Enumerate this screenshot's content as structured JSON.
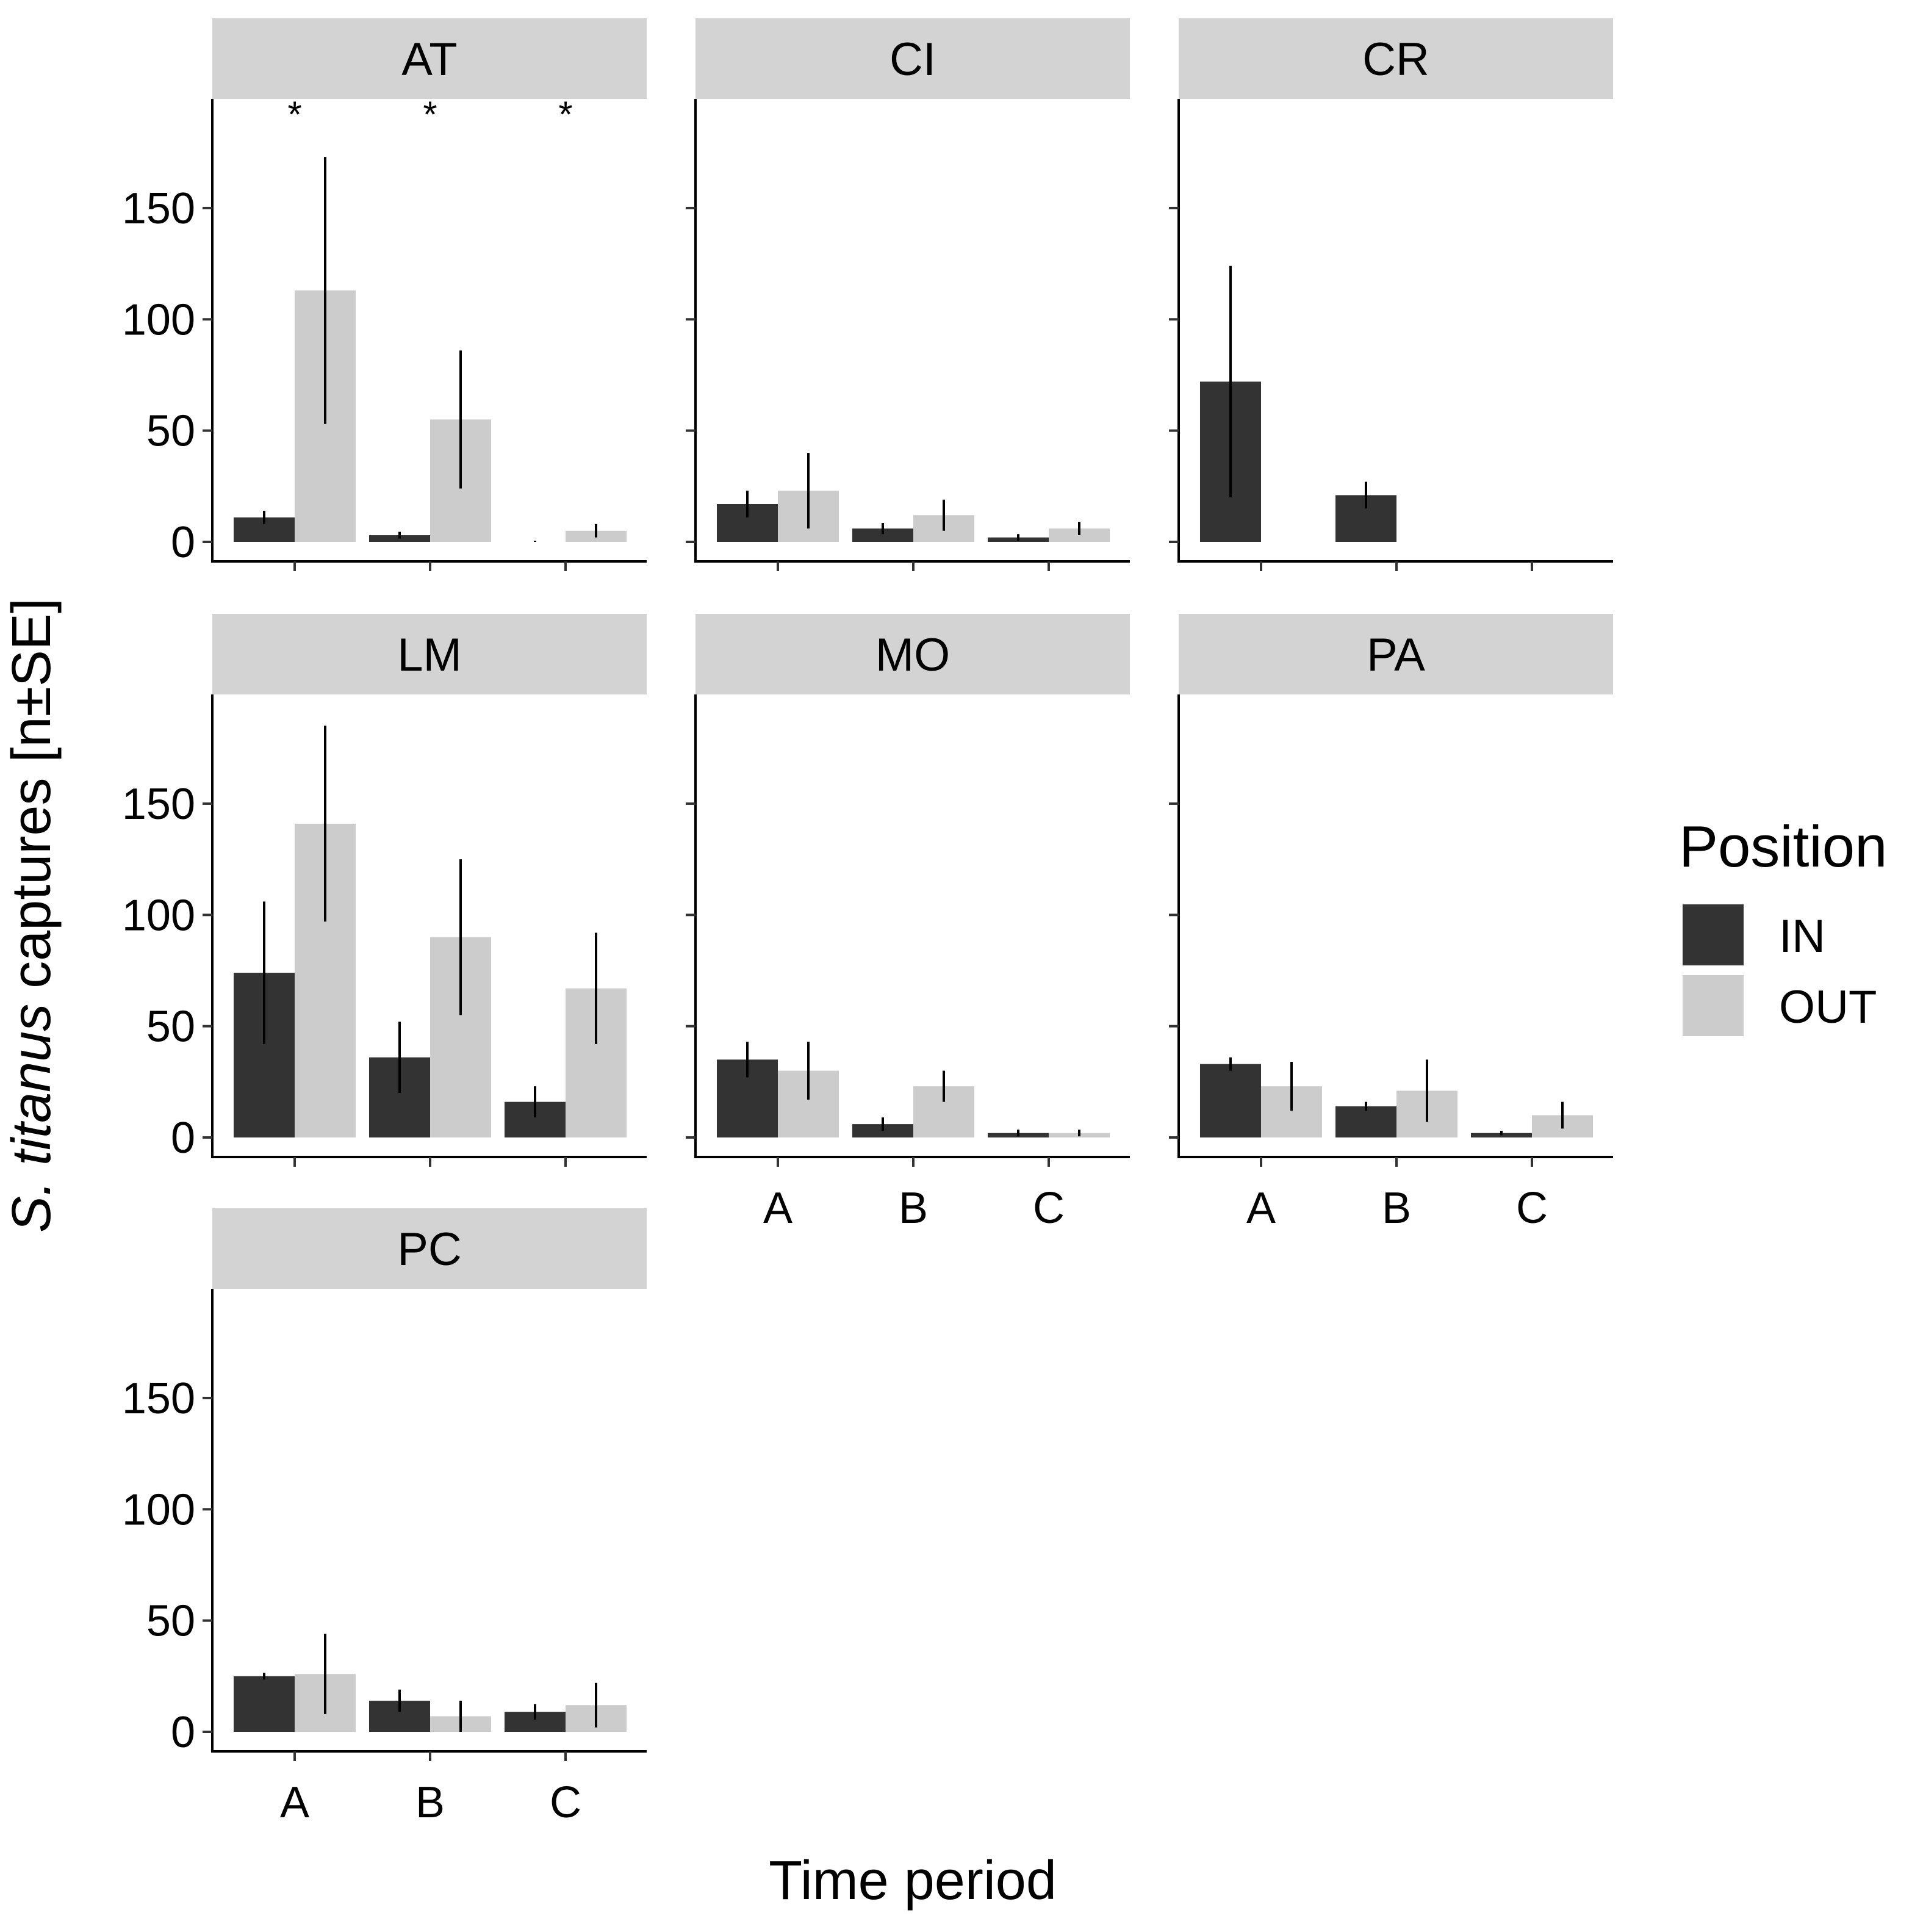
{
  "chart_data": {
    "type": "bar",
    "xlabel": "Time period",
    "ylabel": {
      "species": "S. titanus",
      "rest": " captures [n±SE]"
    },
    "ylim": [
      0,
      200
    ],
    "y_ticks": [
      0,
      50,
      100,
      150
    ],
    "categories": [
      "A",
      "B",
      "C"
    ],
    "legend": {
      "title": "Position",
      "placement": "right",
      "entries": [
        {
          "name": "IN",
          "color": "#333333"
        },
        {
          "name": "OUT",
          "color": "#cccccc"
        }
      ]
    },
    "colors": {
      "IN": "#333333",
      "OUT": "#cccccc",
      "strip": "#d3d3d3"
    },
    "panels": [
      {
        "site": "AT",
        "IN": {
          "values": [
            11,
            3,
            0
          ],
          "se": [
            3,
            1.5,
            0.5
          ]
        },
        "OUT": {
          "values": [
            113,
            55,
            5
          ],
          "se": [
            60,
            31,
            3
          ]
        },
        "significance": [
          "*",
          "*",
          "*"
        ]
      },
      {
        "site": "CI",
        "IN": {
          "values": [
            17,
            6,
            2
          ],
          "se": [
            6,
            2.5,
            1.5
          ]
        },
        "OUT": {
          "values": [
            23,
            12,
            6
          ],
          "se": [
            17,
            7,
            3
          ]
        },
        "significance": [
          "",
          "",
          ""
        ]
      },
      {
        "site": "CR",
        "IN": {
          "values": [
            72,
            21,
            0
          ],
          "se": [
            52,
            6,
            0
          ]
        },
        "OUT": {
          "values": [
            0,
            0,
            0
          ],
          "se": [
            0,
            0,
            0
          ]
        },
        "significance": [
          "",
          "",
          ""
        ]
      },
      {
        "site": "LM",
        "IN": {
          "values": [
            74,
            36,
            16
          ],
          "se": [
            32,
            16,
            7
          ]
        },
        "OUT": {
          "values": [
            141,
            90,
            67
          ],
          "se": [
            44,
            35,
            25
          ]
        },
        "significance": [
          "",
          "",
          ""
        ]
      },
      {
        "site": "MO",
        "IN": {
          "values": [
            35,
            6,
            2
          ],
          "se": [
            8,
            3,
            1.5
          ]
        },
        "OUT": {
          "values": [
            30,
            23,
            2
          ],
          "se": [
            13,
            7,
            1.5
          ]
        },
        "significance": [
          "",
          "",
          ""
        ]
      },
      {
        "site": "PA",
        "IN": {
          "values": [
            33,
            14,
            2
          ],
          "se": [
            3,
            2,
            1
          ]
        },
        "OUT": {
          "values": [
            23,
            21,
            10
          ],
          "se": [
            11,
            14,
            6
          ]
        },
        "significance": [
          "",
          "",
          ""
        ]
      },
      {
        "site": "PC",
        "IN": {
          "values": [
            25,
            14,
            9
          ],
          "se": [
            1.5,
            5,
            3.5
          ]
        },
        "OUT": {
          "values": [
            26,
            7,
            12
          ],
          "se": [
            18,
            7,
            10
          ]
        },
        "significance": [
          "",
          "",
          ""
        ]
      }
    ]
  }
}
